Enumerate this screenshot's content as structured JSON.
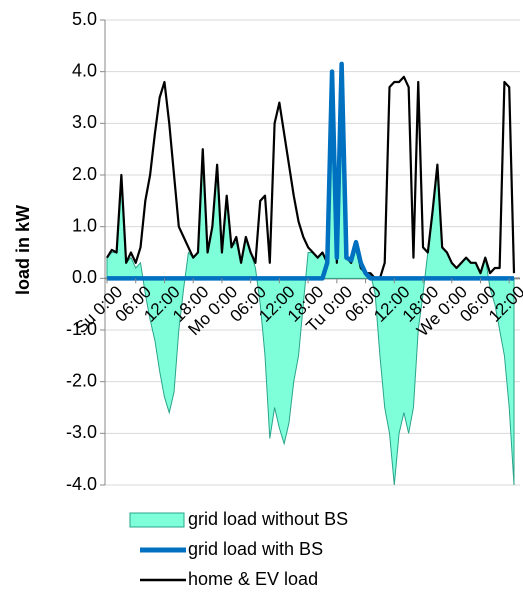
{
  "chart_data": {
    "type": "line",
    "y_label": "load in kW",
    "categories": [
      "Su 0:00",
      null,
      null,
      null,
      null,
      null,
      "06:00",
      null,
      null,
      null,
      null,
      null,
      "12:00",
      null,
      null,
      null,
      null,
      null,
      "18:00",
      null,
      null,
      null,
      null,
      null,
      "Mo 0:00",
      null,
      null,
      null,
      null,
      null,
      "06:00",
      null,
      null,
      null,
      null,
      null,
      "12:00",
      null,
      null,
      null,
      null,
      null,
      "18:00",
      null,
      null,
      null,
      null,
      null,
      "Tu 0:00",
      null,
      null,
      null,
      null,
      null,
      "06:00",
      null,
      null,
      null,
      null,
      null,
      "12:00",
      null,
      null,
      null,
      null,
      null,
      "18:00",
      null,
      null,
      null,
      null,
      null,
      "We 0:00",
      null,
      null,
      null,
      null,
      null,
      "06:00",
      null,
      null,
      null,
      null,
      null,
      "12:00",
      null
    ],
    "series": [
      {
        "name": "grid load without BS",
        "kind": "area",
        "color": "#7fffd9",
        "line_color": "#2aa48c",
        "values": [
          0.4,
          0.5,
          0.5,
          1.8,
          0.3,
          0.4,
          0.2,
          0.3,
          -0.3,
          -0.8,
          -1.2,
          -1.8,
          -2.3,
          -2.6,
          -2.2,
          -1.0,
          -0.2,
          0.5,
          0.4,
          0.5,
          2.4,
          0.5,
          1.0,
          2.2,
          0.5,
          1.5,
          0.6,
          0.7,
          0.3,
          0.8,
          0.5,
          0.2,
          -0.5,
          -1.5,
          -3.1,
          -2.5,
          -2.9,
          -3.2,
          -2.8,
          -2.0,
          -1.5,
          -0.5,
          0.5,
          0.5,
          0.4,
          0.5,
          0.3,
          4.0,
          0.3,
          4.1,
          0.4,
          0.3,
          0.6,
          0.2,
          0.1,
          0.1,
          -0.3,
          -1.5,
          -2.5,
          -3.0,
          -4.0,
          -3.0,
          -2.6,
          -3.0,
          -2.5,
          -1.0,
          -0.3,
          0.5,
          1.2,
          2.2,
          0.6,
          0.5,
          0.3,
          0.2,
          0.3,
          0.4,
          0.3,
          0.3,
          0.1,
          0.4,
          -0.2,
          -0.5,
          -1.0,
          -1.5,
          -2.5,
          -4.0
        ]
      },
      {
        "name": "grid load with BS",
        "kind": "line",
        "color": "#0070c0",
        "values": [
          0,
          0,
          0,
          0,
          0,
          0,
          0,
          0,
          0,
          0,
          0,
          0,
          0,
          0,
          0,
          0,
          0,
          0,
          0,
          0,
          0,
          0,
          0,
          0,
          0,
          0,
          0,
          0,
          0,
          0,
          0,
          0,
          0,
          0,
          0,
          0,
          0,
          0,
          0,
          0,
          0,
          0,
          0,
          0,
          0,
          0,
          0.3,
          4.0,
          0.4,
          4.15,
          0.4,
          0.35,
          0.7,
          0.3,
          0.1,
          0,
          0,
          0,
          0,
          0,
          0,
          0,
          0,
          0,
          0,
          0,
          0,
          0,
          0,
          0,
          0,
          0,
          0,
          0,
          0,
          0,
          0,
          0,
          0,
          0,
          0,
          0,
          0,
          0,
          0,
          0
        ]
      },
      {
        "name": "home & EV load",
        "kind": "line",
        "color": "#000000",
        "values": [
          0.4,
          0.55,
          0.5,
          2.0,
          0.3,
          0.5,
          0.3,
          0.6,
          1.5,
          2.0,
          2.8,
          3.5,
          3.8,
          3.0,
          2.0,
          1.0,
          0.8,
          0.6,
          0.4,
          0.5,
          2.5,
          0.5,
          1.0,
          2.2,
          0.5,
          1.6,
          0.6,
          0.8,
          0.3,
          0.8,
          0.5,
          0.3,
          1.5,
          1.6,
          0.3,
          3.0,
          3.4,
          2.8,
          2.2,
          1.6,
          1.1,
          0.8,
          0.6,
          0.5,
          0.4,
          0.5,
          0.3,
          4.0,
          0.3,
          4.1,
          0.4,
          0.3,
          0.6,
          0.2,
          0.1,
          0.1,
          0.0,
          0.0,
          0.3,
          3.7,
          3.8,
          3.8,
          3.9,
          3.7,
          0.4,
          3.8,
          0.6,
          0.5,
          1.3,
          2.2,
          0.6,
          0.5,
          0.3,
          0.2,
          0.3,
          0.4,
          0.3,
          0.3,
          0.1,
          0.4,
          0.1,
          0.2,
          0.2,
          3.8,
          3.7,
          0.1
        ]
      }
    ],
    "ylim": [
      -4,
      5
    ],
    "yticks": [
      {
        "value": -4,
        "label": "-4.0"
      },
      {
        "value": -3,
        "label": "-3.0"
      },
      {
        "value": -2,
        "label": "-2.0"
      },
      {
        "value": -1,
        "label": "-1.0"
      },
      {
        "value": 0,
        "label": "0.0"
      },
      {
        "value": 1,
        "label": "1.0"
      },
      {
        "value": 2,
        "label": "2.0"
      },
      {
        "value": 3,
        "label": "3.0"
      },
      {
        "value": 4,
        "label": "4.0"
      },
      {
        "value": 5,
        "label": "5.0"
      }
    ],
    "grid": true,
    "legend": "bottom"
  }
}
